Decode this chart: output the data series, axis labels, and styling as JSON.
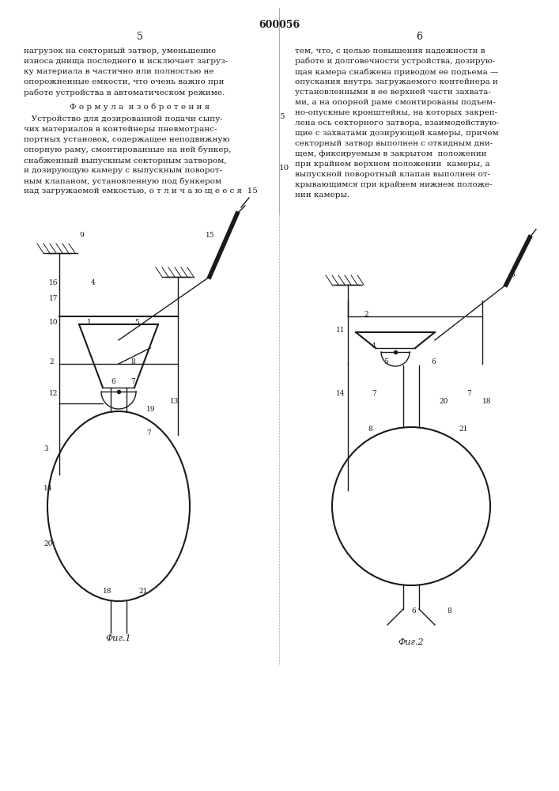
{
  "patent_number": "600056",
  "col_left": "5",
  "col_right": "6",
  "background_color": "#ffffff",
  "text_color": "#1a1a1a",
  "left_text": [
    "нагрузок на секторный затвор, уменьшение",
    "износа днища последнего и исключает загруз-",
    "ку материала в частично или полностью не",
    "опорожненные емкости, что очень важно при",
    "работе устройства в автоматическом режиме."
  ],
  "formula_title": "Ф о р м у л а  и з о б р е т е н и я",
  "formula_text": [
    "   Устройство для дозированной подачи сыпу-",
    "чих материалов в контейнеры пневмотранс-",
    "портных установок, содержащее неподвижную",
    "опорную раму, смонтированные на ней бункер,",
    "снабженный выпускным секторным затвором,",
    "и дозирующую камеру с выпускным поворот-",
    "ным клапаном, установленную под бункером",
    "над загружаемой емкостью, о т л и ч а ю щ е е с я 15"
  ],
  "right_text": [
    "тем, что, с целью повышения надежности в",
    "работе и долговечности устройства, дозирую-",
    "щая камера снабжена приводом ее подъема —",
    "опускания внутрь загружаемого контейнера и",
    "установленными в ее верхней части захвата-",
    "ми, а на опорной раме смонтированы подъем-",
    "но-опускные кронштейны, на которых закреп-",
    "лена ось секторного затвора, взаимодействую-",
    "щие с захватами дозирующей камеры, причем",
    "секторный затвор выполнен с откидным дни-",
    "щем, фиксируемым в закрытом  положении",
    "при крайнем верхнем положении  камеры, а",
    "выпускной поворотный клапан выполнен от-",
    "крывающимся при крайнем нижнем положе-",
    "нии камеры."
  ],
  "fig1_label": "Фиг.1",
  "fig2_label": "Фиг.2",
  "line_numbers_left": [
    "10",
    "15"
  ],
  "line_numbers_center": [
    "5"
  ],
  "figsize": [
    7.07,
    10.0
  ],
  "dpi": 100
}
